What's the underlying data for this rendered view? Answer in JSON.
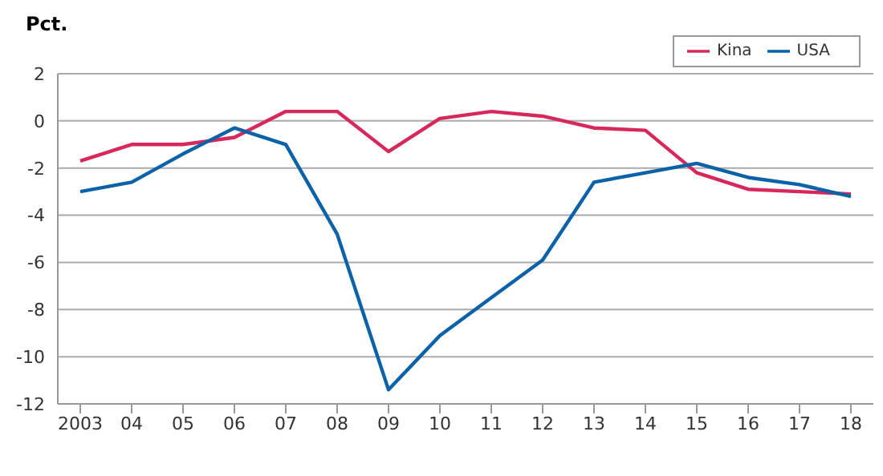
{
  "chart_data": {
    "type": "line",
    "ylabel": "Pct.",
    "categories": [
      "2003",
      "04",
      "05",
      "06",
      "07",
      "08",
      "09",
      "10",
      "11",
      "12",
      "13",
      "14",
      "15",
      "16",
      "17",
      "18"
    ],
    "series": [
      {
        "name": "Kina",
        "color": "#d7285c",
        "values": [
          -1.7,
          -1.0,
          -1.0,
          -0.7,
          0.4,
          0.4,
          -1.3,
          0.1,
          0.4,
          0.2,
          -0.3,
          -0.4,
          -2.2,
          -2.9,
          -3.0,
          -3.1
        ]
      },
      {
        "name": "USA",
        "color": "#0b62a8",
        "values": [
          -3.0,
          -2.6,
          -1.4,
          -0.3,
          -1.0,
          -4.8,
          -11.4,
          -9.1,
          -7.5,
          -5.9,
          -2.6,
          -2.2,
          -1.8,
          -2.4,
          -2.7,
          -3.2
        ]
      }
    ],
    "ylim": [
      -12,
      2
    ],
    "yticks": [
      -12,
      -10,
      -8,
      -6,
      -4,
      -2,
      0,
      2
    ],
    "grid": "y",
    "legend": "top right",
    "marker": "none",
    "line_style": "solid"
  }
}
